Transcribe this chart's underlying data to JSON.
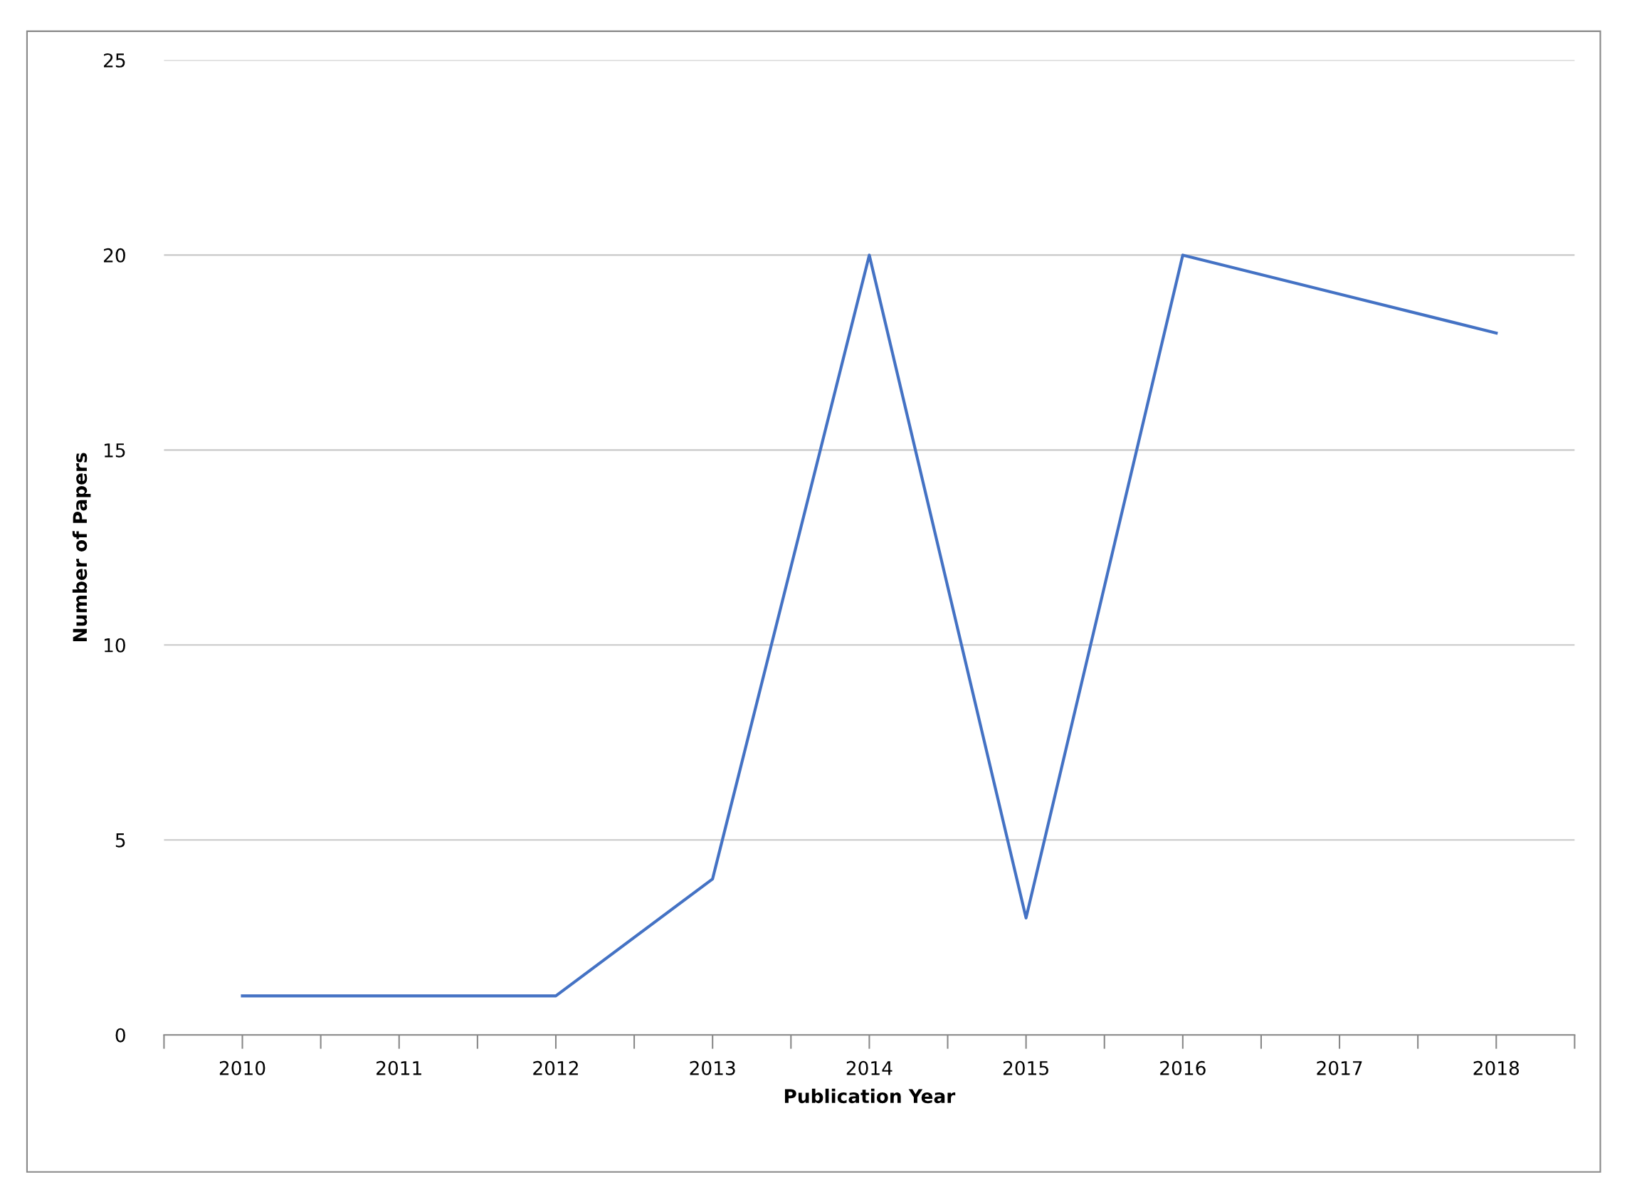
{
  "chart_data": {
    "type": "line",
    "xlabel": "Publication Year",
    "ylabel": "Number of Papers",
    "categories": [
      "2010",
      "2011",
      "2012",
      "2013",
      "2014",
      "2015",
      "2016",
      "2017",
      "2018"
    ],
    "series": [
      {
        "color": "#4472c4",
        "values": [
          1,
          1,
          1,
          4,
          20,
          3,
          20,
          19,
          18
        ]
      }
    ],
    "ylim": [
      0,
      25
    ],
    "yticks": [
      0,
      5,
      10,
      15,
      20,
      25
    ],
    "grid": "y",
    "marker": "none",
    "line_style": "solid"
  }
}
